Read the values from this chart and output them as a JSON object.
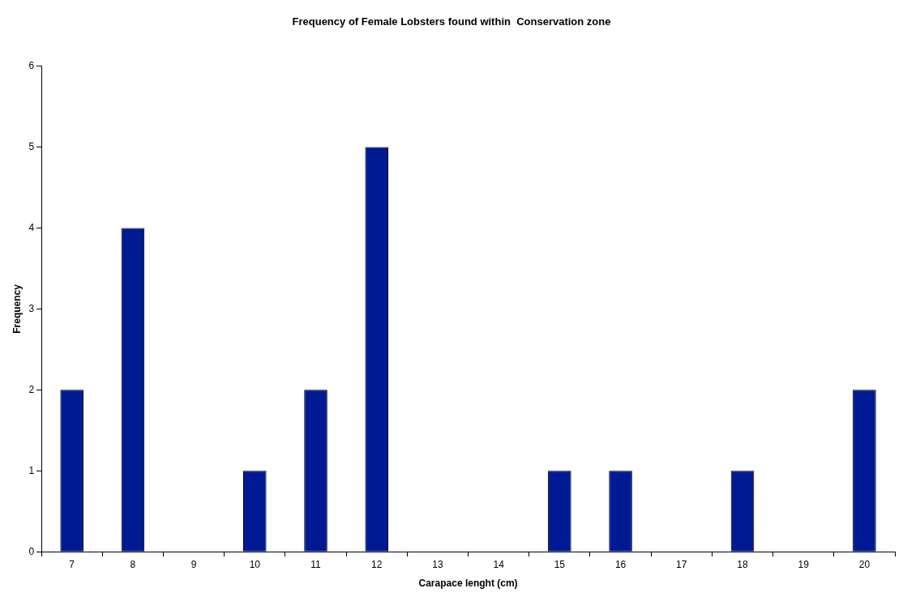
{
  "chart_data": {
    "type": "bar",
    "title": "Frequency of Female Lobsters found within  Conservation zone",
    "xlabel": "Carapace lenght (cm)",
    "ylabel": "Frequency",
    "categories": [
      "7",
      "8",
      "9",
      "10",
      "11",
      "12",
      "13",
      "14",
      "15",
      "16",
      "17",
      "18",
      "19",
      "20"
    ],
    "values": [
      2,
      4,
      0,
      1,
      2,
      5,
      0,
      0,
      1,
      1,
      0,
      1,
      0,
      2
    ],
    "color": "#001a94",
    "ylim": [
      0,
      6
    ],
    "yticks": [
      0,
      1,
      2,
      3,
      4,
      5,
      6
    ],
    "grid": false,
    "legend": false
  }
}
